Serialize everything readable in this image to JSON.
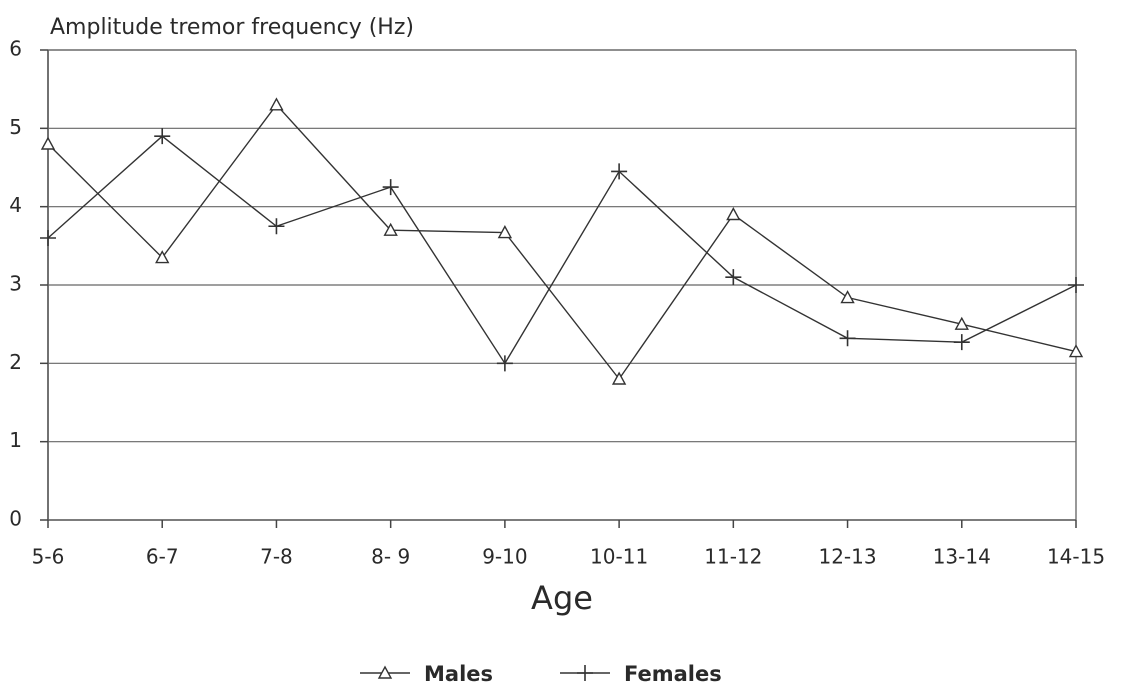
{
  "chart_data": {
    "type": "line",
    "title": "Amplitude tremor frequency (Hz)",
    "x_label": "Age",
    "categories": [
      "5-6",
      "6-7",
      "7-8",
      "8- 9",
      "9-10",
      "10-11",
      "11-12",
      "12-13",
      "13-14",
      "14-15"
    ],
    "series": [
      {
        "name": "Males",
        "color": "#333333",
        "marker": "triangle",
        "values": [
          4.8,
          3.35,
          5.3,
          3.7,
          3.67,
          1.8,
          3.9,
          2.84,
          2.5,
          2.15
        ]
      },
      {
        "name": "Females",
        "color": "#333333",
        "marker": "plus",
        "values": [
          3.6,
          4.9,
          3.75,
          4.25,
          2.0,
          4.45,
          3.1,
          2.32,
          2.27,
          3.0
        ]
      }
    ],
    "ylim": [
      0,
      6
    ],
    "yticks": [
      0,
      1,
      2,
      3,
      4,
      5,
      6
    ],
    "grid": true,
    "legend": "bottom"
  }
}
